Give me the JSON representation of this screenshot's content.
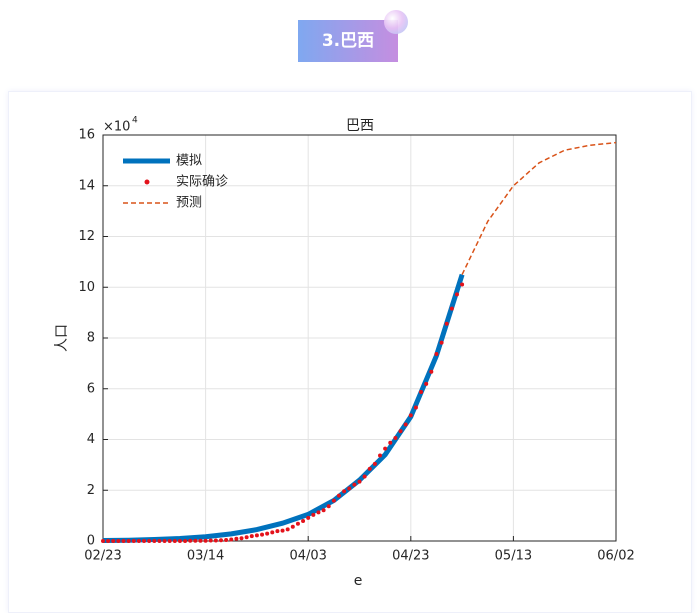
{
  "header": {
    "title": "3.巴西"
  },
  "chart_data": {
    "type": "line",
    "title": "巴西",
    "xlabel": "e",
    "ylabel": "人口",
    "y_scale": {
      "base": "×10",
      "exponent": "4"
    },
    "xlim": [
      "02/23",
      "06/02"
    ],
    "xticks": [
      "02/23",
      "03/14",
      "04/03",
      "04/23",
      "05/13",
      "06/02"
    ],
    "ylim": [
      0,
      16
    ],
    "yticks": [
      0,
      2,
      4,
      6,
      8,
      10,
      12,
      14,
      16
    ],
    "grid": true,
    "legend": "upper left",
    "series": [
      {
        "name": "模拟",
        "style": "line",
        "color": "#0072bd",
        "x": [
          "02/23",
          "02/28",
          "03/04",
          "03/09",
          "03/14",
          "03/19",
          "03/24",
          "03/29",
          "04/03",
          "04/08",
          "04/13",
          "04/18",
          "04/23",
          "04/28",
          "05/03"
        ],
        "values": [
          0.02,
          0.03,
          0.06,
          0.1,
          0.17,
          0.28,
          0.45,
          0.7,
          1.05,
          1.6,
          2.4,
          3.4,
          4.9,
          7.3,
          10.5
        ]
      },
      {
        "name": "实际确诊",
        "style": "markers",
        "color": "#e3121b",
        "x": [
          "02/23",
          "02/24",
          "02/25",
          "02/26",
          "02/27",
          "02/28",
          "02/29",
          "03/01",
          "03/02",
          "03/03",
          "03/04",
          "03/05",
          "03/06",
          "03/07",
          "03/08",
          "03/09",
          "03/10",
          "03/11",
          "03/12",
          "03/13",
          "03/14",
          "03/15",
          "03/16",
          "03/17",
          "03/18",
          "03/19",
          "03/20",
          "03/21",
          "03/22",
          "03/23",
          "03/24",
          "03/25",
          "03/26",
          "03/27",
          "03/28",
          "03/29",
          "03/30",
          "03/31",
          "04/01",
          "04/02",
          "04/03",
          "04/04",
          "04/05",
          "04/06",
          "04/07",
          "04/08",
          "04/09",
          "04/10",
          "04/11",
          "04/12",
          "04/13",
          "04/14",
          "04/15",
          "04/16",
          "04/17",
          "04/18",
          "04/19",
          "04/20",
          "04/21",
          "04/22",
          "04/23",
          "04/24",
          "04/25",
          "04/26",
          "04/27",
          "04/28",
          "04/29",
          "04/30",
          "05/01",
          "05/02",
          "05/03"
        ],
        "values": [
          0,
          0,
          0,
          0,
          0,
          0,
          0,
          0,
          0,
          0,
          0,
          0,
          0,
          0,
          0,
          0,
          0,
          0.01,
          0.01,
          0.01,
          0.01,
          0.02,
          0.02,
          0.03,
          0.04,
          0.06,
          0.09,
          0.11,
          0.15,
          0.19,
          0.22,
          0.25,
          0.29,
          0.34,
          0.39,
          0.41,
          0.46,
          0.56,
          0.68,
          0.79,
          0.91,
          1.03,
          1.13,
          1.21,
          1.37,
          1.59,
          1.79,
          1.96,
          2.07,
          2.22,
          2.34,
          2.54,
          2.84,
          3.04,
          3.37,
          3.64,
          3.87,
          4.06,
          4.33,
          4.59,
          4.95,
          5.26,
          5.87,
          6.19,
          6.67,
          7.37,
          7.82,
          8.56,
          9.16,
          9.72,
          10.11
        ]
      },
      {
        "name": "预测",
        "style": "dashed",
        "color": "#d95319",
        "x": [
          "05/03",
          "05/08",
          "05/13",
          "05/18",
          "05/23",
          "05/28",
          "06/02"
        ],
        "values": [
          10.5,
          12.6,
          14.0,
          14.9,
          15.4,
          15.6,
          15.7
        ]
      }
    ]
  }
}
